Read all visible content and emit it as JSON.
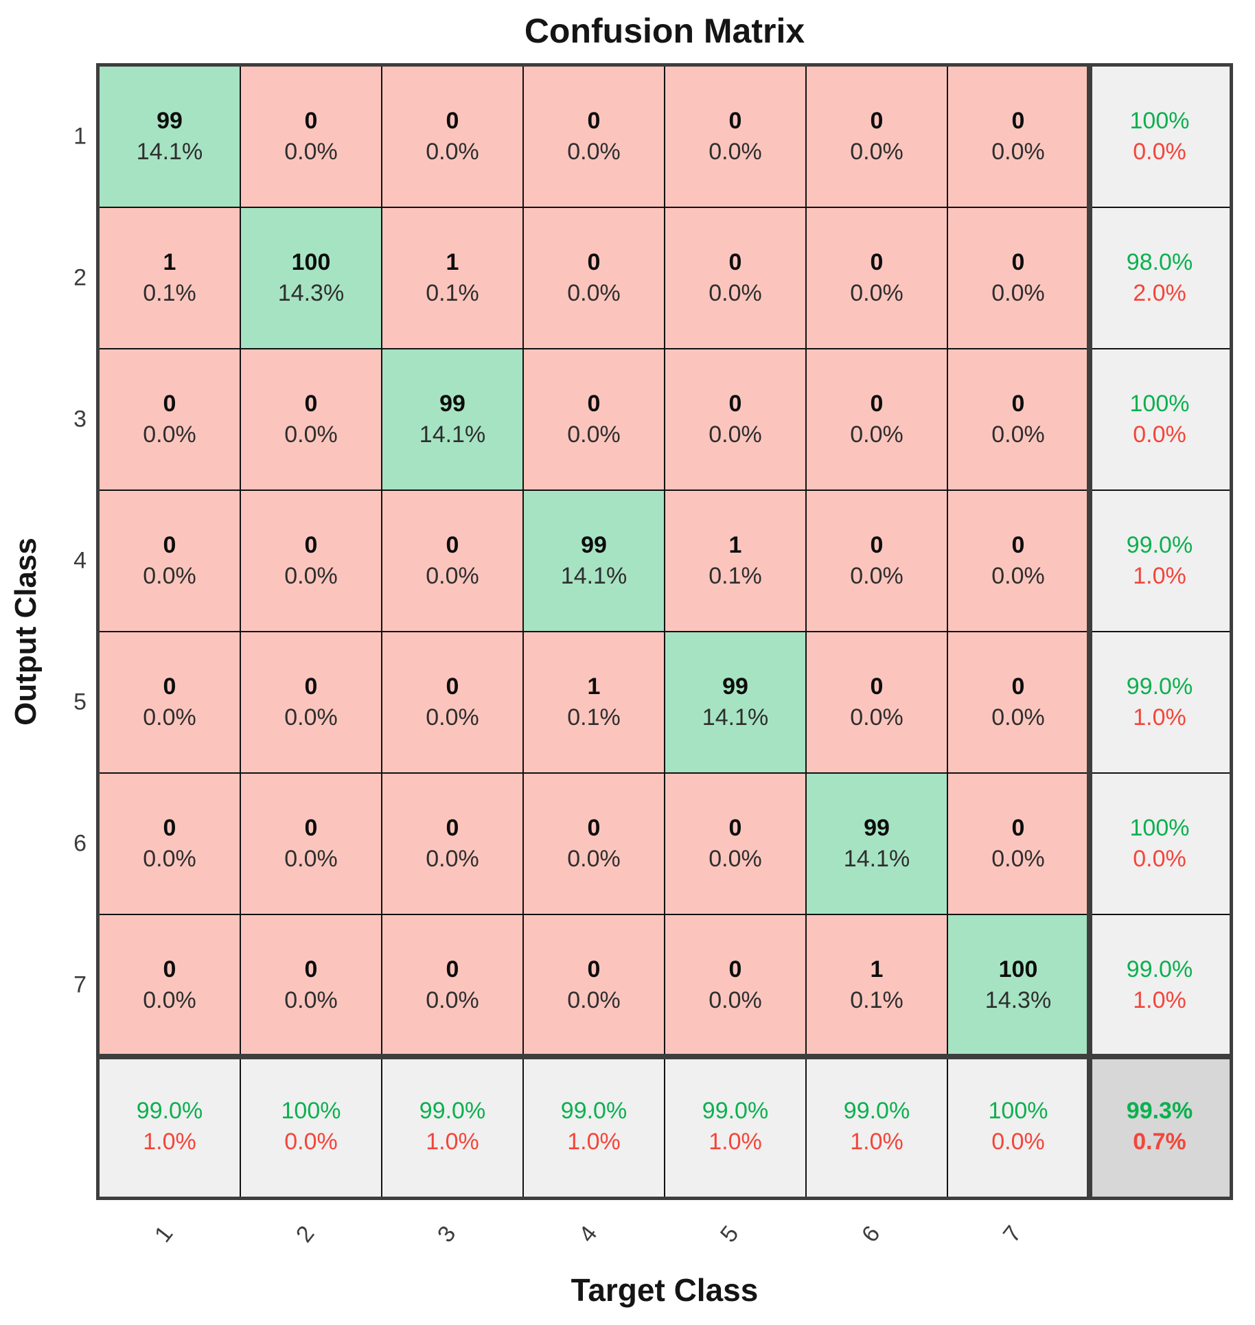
{
  "chart_data": {
    "type": "heatmap",
    "title": "Confusion Matrix",
    "xlabel": "Target Class",
    "ylabel": "Output Class",
    "x_tick_labels": [
      "1",
      "2",
      "3",
      "4",
      "5",
      "6",
      "7"
    ],
    "y_tick_labels": [
      "1",
      "2",
      "3",
      "4",
      "5",
      "6",
      "7"
    ],
    "counts": [
      [
        99,
        0,
        0,
        0,
        0,
        0,
        0
      ],
      [
        1,
        100,
        1,
        0,
        0,
        0,
        0
      ],
      [
        0,
        0,
        99,
        0,
        0,
        0,
        0
      ],
      [
        0,
        0,
        0,
        99,
        1,
        0,
        0
      ],
      [
        0,
        0,
        0,
        1,
        99,
        0,
        0
      ],
      [
        0,
        0,
        0,
        0,
        0,
        99,
        0
      ],
      [
        0,
        0,
        0,
        0,
        0,
        1,
        100
      ]
    ],
    "cell_percents": [
      [
        "14.1%",
        "0.0%",
        "0.0%",
        "0.0%",
        "0.0%",
        "0.0%",
        "0.0%"
      ],
      [
        "0.1%",
        "14.3%",
        "0.1%",
        "0.0%",
        "0.0%",
        "0.0%",
        "0.0%"
      ],
      [
        "0.0%",
        "0.0%",
        "14.1%",
        "0.0%",
        "0.0%",
        "0.0%",
        "0.0%"
      ],
      [
        "0.0%",
        "0.0%",
        "0.0%",
        "14.1%",
        "0.1%",
        "0.0%",
        "0.0%"
      ],
      [
        "0.0%",
        "0.0%",
        "0.0%",
        "0.1%",
        "14.1%",
        "0.0%",
        "0.0%"
      ],
      [
        "0.0%",
        "0.0%",
        "0.0%",
        "0.0%",
        "0.0%",
        "14.1%",
        "0.0%"
      ],
      [
        "0.0%",
        "0.0%",
        "0.0%",
        "0.0%",
        "0.0%",
        "0.1%",
        "14.3%"
      ]
    ],
    "row_summary": [
      [
        "100%",
        "0.0%"
      ],
      [
        "98.0%",
        "2.0%"
      ],
      [
        "100%",
        "0.0%"
      ],
      [
        "99.0%",
        "1.0%"
      ],
      [
        "99.0%",
        "1.0%"
      ],
      [
        "100%",
        "0.0%"
      ],
      [
        "99.0%",
        "1.0%"
      ]
    ],
    "col_summary": [
      [
        "99.0%",
        "1.0%"
      ],
      [
        "100%",
        "0.0%"
      ],
      [
        "99.0%",
        "1.0%"
      ],
      [
        "99.0%",
        "1.0%"
      ],
      [
        "99.0%",
        "1.0%"
      ],
      [
        "99.0%",
        "1.0%"
      ],
      [
        "100%",
        "0.0%"
      ]
    ],
    "overall": [
      "99.3%",
      "0.7%"
    ],
    "colors": {
      "diagonal_cell": "#a6e3c3",
      "off_diagonal_cell": "#fbc5bd",
      "summary_cell": "#f0f0f0",
      "overall_cell": "#d7d7d7",
      "positive_text": "#0cb04f",
      "negative_text": "#f4453a",
      "grid_line": "#111111",
      "frame": "#3e3e3e"
    }
  }
}
